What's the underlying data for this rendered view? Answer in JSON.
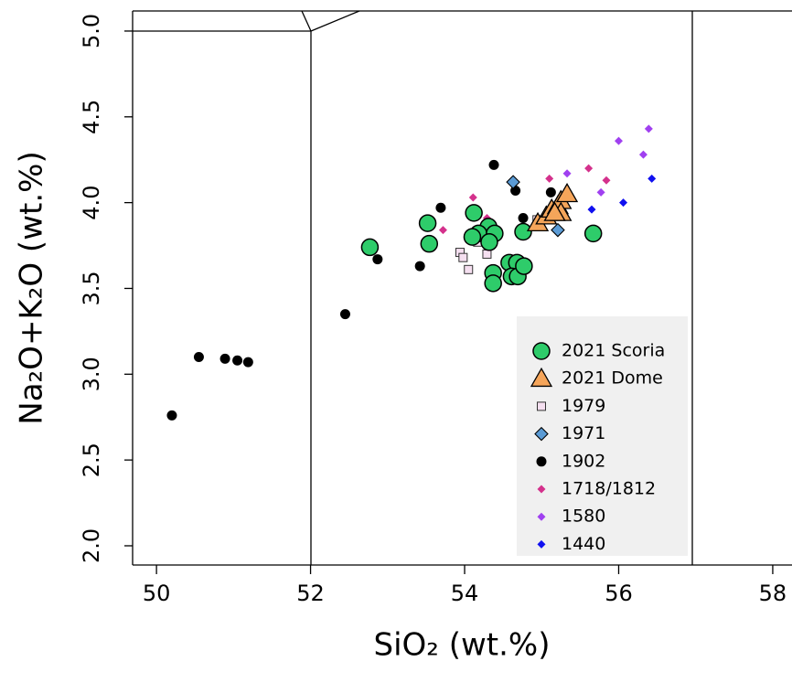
{
  "chart_data": {
    "type": "scatter",
    "x_label": "SiO₂ (wt.%)",
    "y_label": "Na₂O+K₂O (wt.%)",
    "xlim": [
      49.69,
      58.25
    ],
    "ylim": [
      1.888,
      5.117
    ],
    "xticks": [
      50,
      52,
      54,
      56,
      58
    ],
    "yticks": [
      {
        "value": 2,
        "label": "2.0"
      },
      2.5,
      {
        "value": 3,
        "label": "3.0"
      },
      3.5,
      {
        "value": 4,
        "label": "4.0"
      },
      4.5,
      {
        "value": 5,
        "label": "5.0"
      }
    ],
    "grid": false,
    "legend": "lower right",
    "series": [
      {
        "name": "2021 Scoria",
        "color": "#2ecc6a",
        "marker": "circle",
        "x": [
          52.77,
          53.52,
          53.54,
          54.12,
          54.31,
          54.18,
          54.1,
          54.39,
          54.32,
          54.76,
          55.67,
          54.37,
          54.37,
          54.58,
          54.68,
          54.61,
          54.69,
          54.77
        ],
        "values": [
          3.74,
          3.88,
          3.76,
          3.94,
          3.86,
          3.82,
          3.8,
          3.82,
          3.77,
          3.83,
          3.82,
          3.59,
          3.53,
          3.65,
          3.65,
          3.57,
          3.57,
          3.63
        ]
      },
      {
        "name": "2021 Dome",
        "color": "#f5a55a",
        "marker": "triangle",
        "x": [
          54.95,
          55.06,
          55.13,
          55.21,
          55.25,
          55.33,
          55.25,
          55.17
        ],
        "values": [
          3.88,
          3.92,
          3.96,
          3.98,
          4.01,
          4.05,
          3.94,
          3.94
        ]
      },
      {
        "name": "1979",
        "color": "#f5dff0",
        "marker": "square",
        "x": [
          53.94,
          53.98,
          54.05,
          54.17,
          54.29,
          54.94,
          55.07
        ],
        "values": [
          3.71,
          3.68,
          3.61,
          3.77,
          3.7,
          3.9,
          3.9
        ]
      },
      {
        "name": "1971",
        "color": "#5b9bd5",
        "marker": "diamond",
        "x": [
          54.63,
          55.21
        ],
        "values": [
          4.12,
          3.84
        ]
      },
      {
        "name": "1902",
        "color": "#000000",
        "marker": "dot",
        "x": [
          50.2,
          50.55,
          50.89,
          51.05,
          51.19,
          52.45,
          52.87,
          53.42,
          53.69,
          54.38,
          54.66,
          54.76,
          55.12
        ],
        "values": [
          2.76,
          3.1,
          3.09,
          3.08,
          3.07,
          3.35,
          3.67,
          3.63,
          3.97,
          4.22,
          4.07,
          3.91,
          4.06
        ]
      },
      {
        "name": "1718/1812",
        "color": "#d4318c",
        "marker": "small-diamond",
        "x": [
          53.72,
          54.11,
          54.29,
          55.1,
          55.61,
          55.84
        ],
        "values": [
          3.84,
          4.03,
          3.91,
          4.14,
          4.2,
          4.13
        ]
      },
      {
        "name": "1580",
        "color": "#a040f0",
        "marker": "small-diamond",
        "x": [
          55.33,
          55.77,
          56.0,
          56.32,
          56.39
        ],
        "values": [
          4.17,
          4.06,
          4.36,
          4.28,
          4.43
        ]
      },
      {
        "name": "1440",
        "color": "#1010f0",
        "marker": "small-diamond",
        "x": [
          55.65,
          56.06,
          56.43
        ],
        "values": [
          3.96,
          4.0,
          4.14
        ]
      }
    ]
  }
}
